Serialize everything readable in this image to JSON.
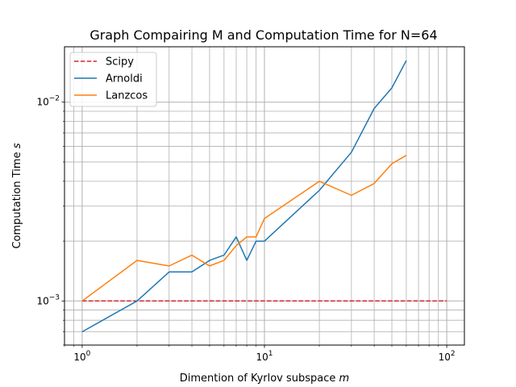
{
  "chart_data": {
    "type": "line",
    "title": "Graph Compairing M and Computation Time for N=64",
    "xlabel": "Dimention of Kyrlov subspace",
    "xlabel_math": "m",
    "ylabel": "Computation Time",
    "ylabel_math": "s",
    "xscale": "log",
    "yscale": "log",
    "xlim": [
      0.8,
      125
    ],
    "ylim": [
      0.0006,
      0.019
    ],
    "grid": "on (major and minor)",
    "legend_position": "top-left",
    "x_ticks": [
      {
        "value": 1,
        "base": "10",
        "exp": "0"
      },
      {
        "value": 10,
        "base": "10",
        "exp": "1"
      },
      {
        "value": 100,
        "base": "10",
        "exp": "2"
      }
    ],
    "y_ticks": [
      {
        "value": 0.001,
        "base": "10",
        "exp": "−3"
      },
      {
        "value": 0.01,
        "base": "10",
        "exp": "−2"
      }
    ],
    "series": [
      {
        "name": "Scipy",
        "color": "#d62728",
        "style": "dashed",
        "x": [
          1,
          100
        ],
        "y": [
          0.001,
          0.001
        ]
      },
      {
        "name": "Arnoldi",
        "color": "#1f77b4",
        "style": "solid",
        "x": [
          1,
          2,
          3,
          4,
          5,
          6,
          7,
          8,
          9,
          10,
          20,
          30,
          40,
          50,
          60
        ],
        "y": [
          0.0007,
          0.001,
          0.0014,
          0.0014,
          0.0016,
          0.0017,
          0.0021,
          0.0016,
          0.002,
          0.002,
          0.0036,
          0.0056,
          0.0093,
          0.0118,
          0.0162
        ]
      },
      {
        "name": "Lanzcos",
        "color": "#ff7f0e",
        "style": "solid",
        "x": [
          1,
          2,
          3,
          4,
          5,
          6,
          7,
          8,
          9,
          10,
          20,
          30,
          40,
          50,
          60
        ],
        "y": [
          0.001,
          0.0016,
          0.0015,
          0.0017,
          0.0015,
          0.0016,
          0.0019,
          0.0021,
          0.0021,
          0.0026,
          0.004,
          0.0034,
          0.0039,
          0.0049,
          0.0054
        ]
      }
    ]
  }
}
